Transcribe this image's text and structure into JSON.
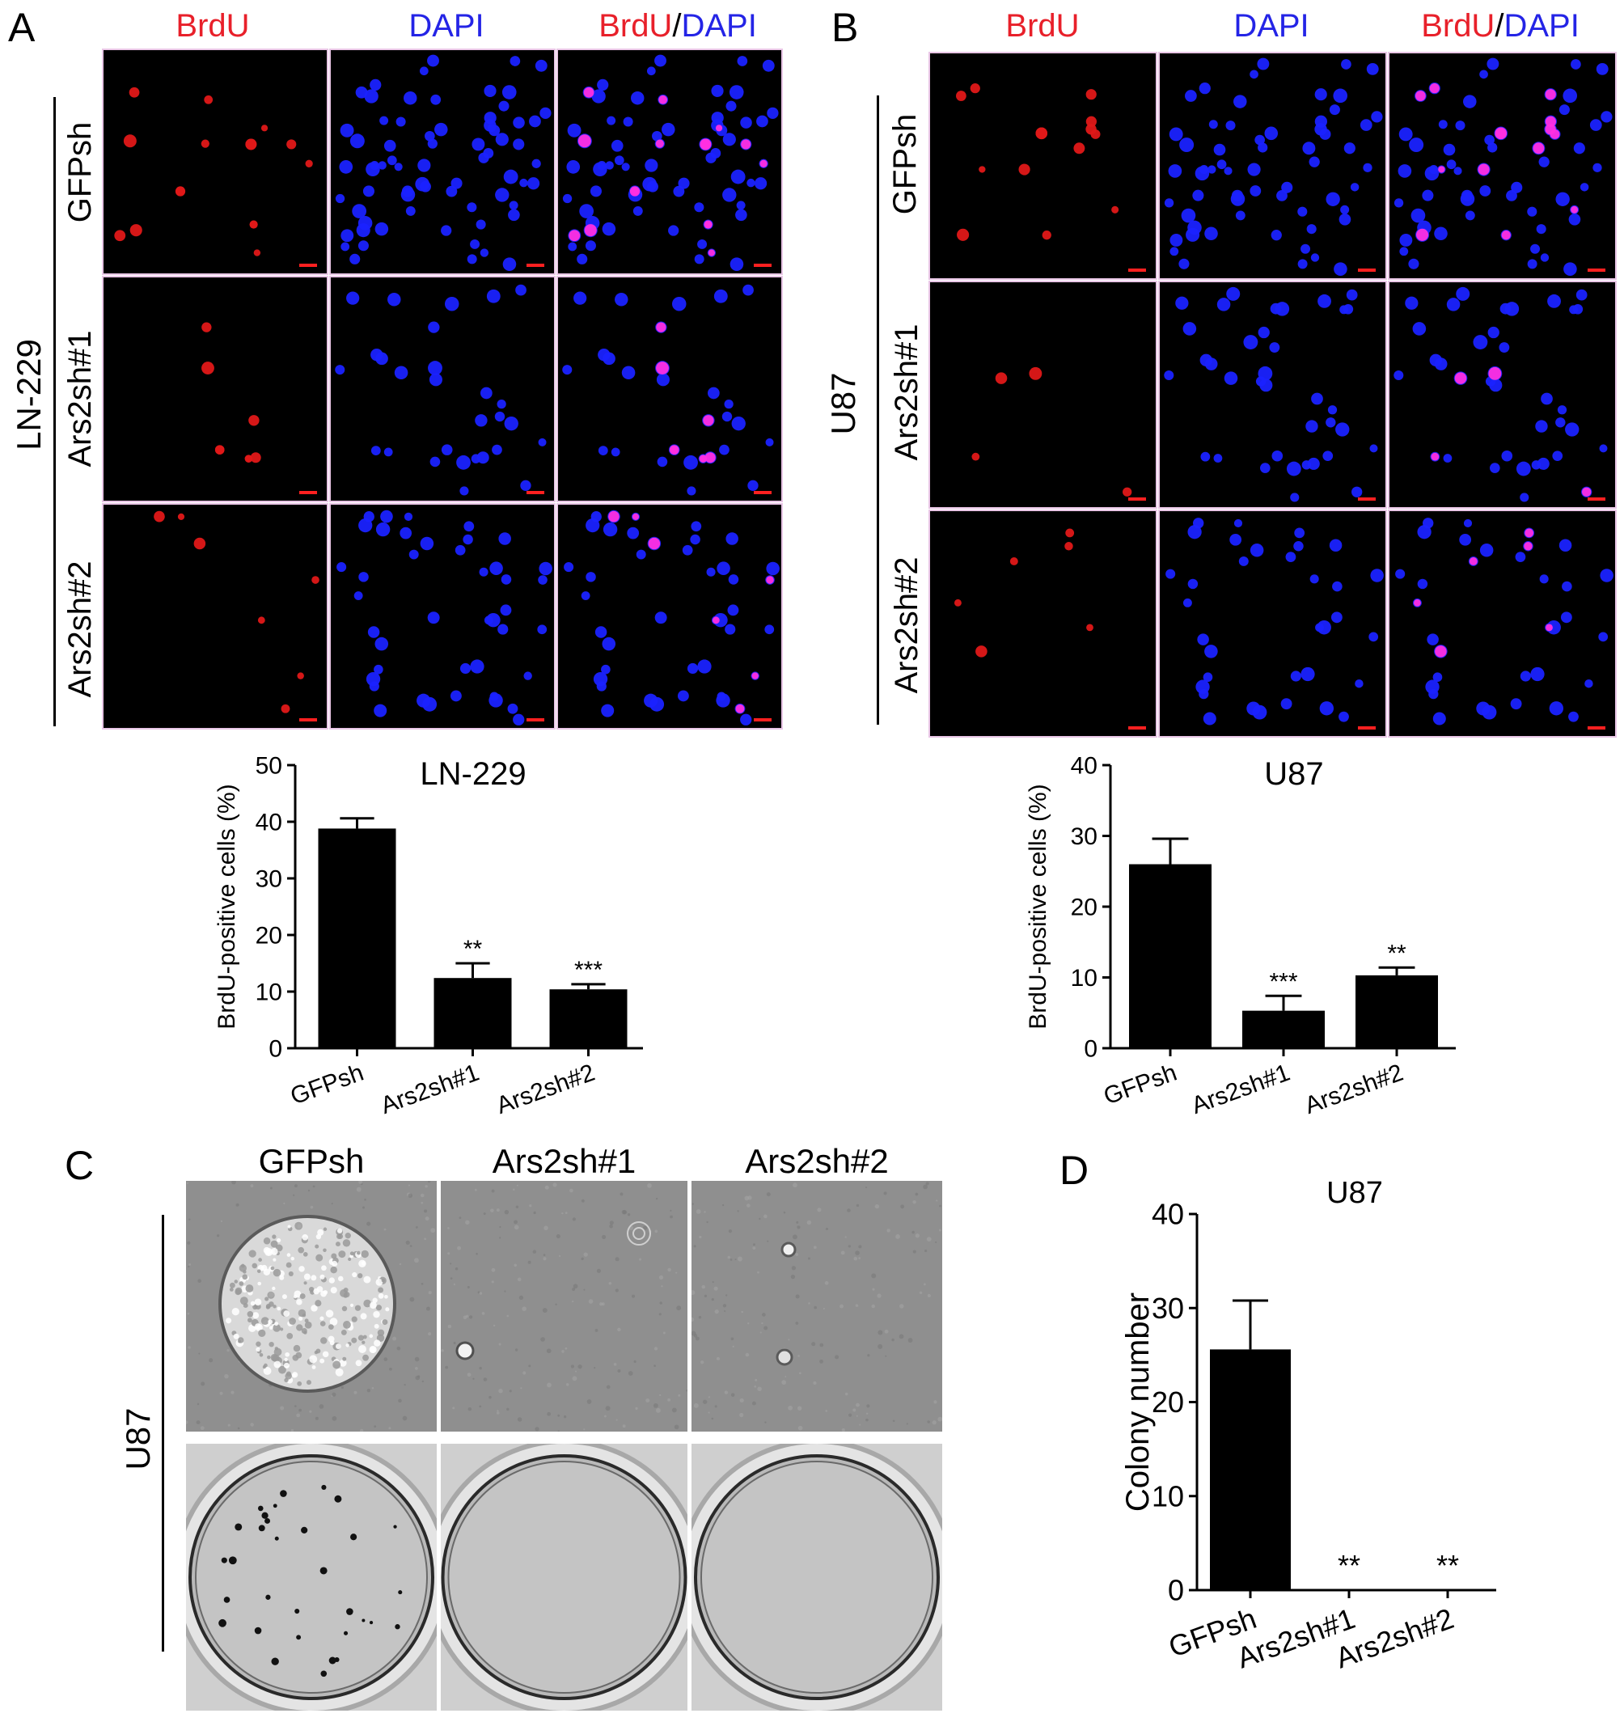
{
  "panels": {
    "A": {
      "letter": "A",
      "cell_line": "LN-229",
      "channels": [
        "BrdU",
        "DAPI"
      ],
      "merge_label": {
        "left": "BrdU",
        "sep": "/",
        "right": "DAPI"
      },
      "rows": [
        "GFPsh",
        "Ars2sh#1",
        "Ars2sh#2"
      ]
    },
    "B": {
      "letter": "B",
      "cell_line": "U87",
      "channels": [
        "BrdU",
        "DAPI"
      ],
      "merge_label": {
        "left": "BrdU",
        "sep": "/",
        "right": "DAPI"
      },
      "rows": [
        "GFPsh",
        "Ars2sh#1",
        "Ars2sh#2"
      ]
    },
    "C": {
      "letter": "C",
      "cell_line": "U87",
      "columns": [
        "GFPsh",
        "Ars2sh#1",
        "Ars2sh#2"
      ]
    },
    "D": {
      "letter": "D"
    }
  },
  "colors": {
    "brdu": "#e8202a",
    "dapi": "#2424e6",
    "bar": "#000000"
  },
  "chart_data": [
    {
      "id": "A-bar",
      "type": "bar",
      "title": "LN-229",
      "ylabel": "BrdU-positive cells (%)",
      "xlabel": "",
      "categories": [
        "GFPsh",
        "Ars2sh#1",
        "Ars2sh#2"
      ],
      "values": [
        38.8,
        12.4,
        10.4
      ],
      "errors": [
        1.8,
        2.6,
        0.9
      ],
      "annotations": [
        "",
        "**",
        "***"
      ],
      "ylim": [
        0,
        50
      ],
      "yticks": [
        0,
        10,
        20,
        30,
        40,
        50
      ]
    },
    {
      "id": "B-bar",
      "type": "bar",
      "title": "U87",
      "ylabel": "BrdU-positive cells (%)",
      "xlabel": "",
      "categories": [
        "GFPsh",
        "Ars2sh#1",
        "Ars2sh#2"
      ],
      "values": [
        26.0,
        5.3,
        10.3
      ],
      "errors": [
        3.6,
        2.1,
        1.1
      ],
      "annotations": [
        "",
        "***",
        "**"
      ],
      "ylim": [
        0,
        40
      ],
      "yticks": [
        0,
        10,
        20,
        30,
        40
      ]
    },
    {
      "id": "D-bar",
      "type": "bar",
      "title": "U87",
      "ylabel": "Colony number",
      "xlabel": "",
      "categories": [
        "GFPsh",
        "Ars2sh#1",
        "Ars2sh#2"
      ],
      "values": [
        25.6,
        0,
        0
      ],
      "errors": [
        5.2,
        0,
        0
      ],
      "annotations": [
        "",
        "**",
        "**"
      ],
      "ylim": [
        0,
        40
      ],
      "yticks": [
        0,
        10,
        20,
        30,
        40
      ]
    }
  ]
}
